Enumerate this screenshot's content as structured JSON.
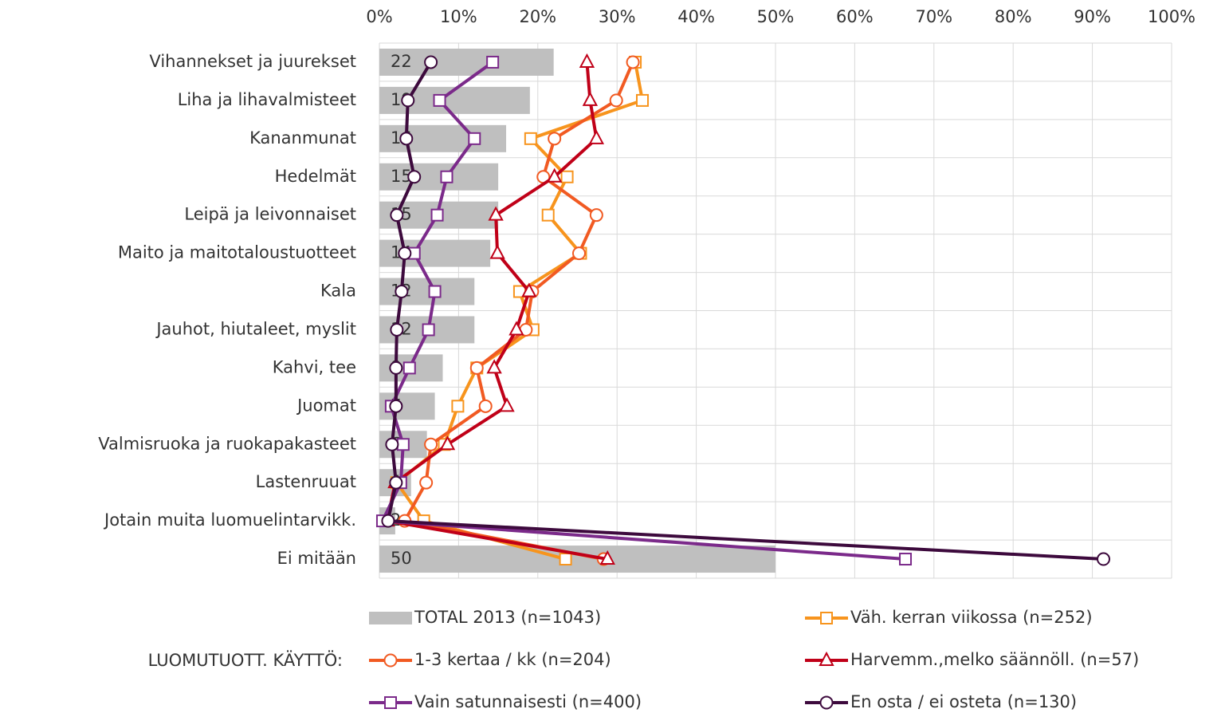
{
  "chart_data": {
    "type": "bar",
    "orientation": "horizontal",
    "categories": [
      "Vihannekset ja juurekset",
      "Liha ja lihavalmisteet",
      "Kananmunat",
      "Hedelmät",
      "Leipä ja leivonnaiset",
      "Maito ja maitotaloustuotteet",
      "Kala",
      "Jauhot, hiutaleet, myslit",
      "Kahvi, tee",
      "Juomat",
      "Valmisruoka ja ruokapakasteet",
      "Lastenruuat",
      "Jotain muita luomuelintarvikk.",
      "Ei mitään"
    ],
    "xlim": [
      0,
      100
    ],
    "xticks": [
      {
        "value": 0,
        "label": "0%"
      },
      {
        "value": 10,
        "label": "10%"
      },
      {
        "value": 20,
        "label": "20%"
      },
      {
        "value": 30,
        "label": "30%"
      },
      {
        "value": 40,
        "label": "40%"
      },
      {
        "value": 50,
        "label": "50%"
      },
      {
        "value": 60,
        "label": "60%"
      },
      {
        "value": 70,
        "label": "70%"
      },
      {
        "value": 80,
        "label": "80%"
      },
      {
        "value": 90,
        "label": "90%"
      },
      {
        "value": 100,
        "label": "100%"
      }
    ],
    "grid": true,
    "legend_title": "LUOMUTUOTT. KÄYTTÖ:",
    "series": [
      {
        "name": "TOTAL 2013 (n=1043)",
        "type": "bar",
        "color": "#bfbfbf",
        "values": [
          22,
          19,
          16,
          15,
          15,
          14,
          12,
          12,
          8,
          7,
          6,
          4,
          2,
          50
        ]
      },
      {
        "name": "Väh. kerran viikossa (n=252)",
        "type": "line",
        "marker": "square",
        "color": "#f7941d",
        "values": [
          32.3,
          33.2,
          19.1,
          23.7,
          21.3,
          25.4,
          17.7,
          19.4,
          12.3,
          9.9,
          8.2,
          2.2,
          5.6,
          23.5
        ]
      },
      {
        "name": "1-3 kertaa / kk (n=204)",
        "type": "line",
        "marker": "circle",
        "color": "#f15a22",
        "values": [
          32.0,
          29.9,
          22.1,
          20.7,
          27.4,
          25.2,
          19.3,
          18.5,
          12.3,
          13.4,
          6.5,
          5.9,
          3.2,
          28.3
        ]
      },
      {
        "name": "Harvemm.,melko säännöll. (n=57)",
        "type": "line",
        "marker": "triangle",
        "color": "#c00018",
        "values": [
          26.2,
          26.6,
          27.4,
          22.1,
          14.7,
          14.9,
          18.9,
          17.3,
          14.5,
          16.1,
          8.6,
          2.0,
          1.0,
          28.8
        ]
      },
      {
        "name": "Vain satunnaisesti (n=400)",
        "type": "line",
        "marker": "square",
        "color": "#7b2a8a",
        "values": [
          14.3,
          7.6,
          12.0,
          8.5,
          7.3,
          4.4,
          7.0,
          6.2,
          3.8,
          1.5,
          3.0,
          2.7,
          0.4,
          66.4
        ]
      },
      {
        "name": "En osta / ei osteta (n=130)",
        "type": "line",
        "marker": "circle",
        "color": "#3d0a3d",
        "values": [
          6.5,
          3.6,
          3.4,
          4.4,
          2.2,
          3.2,
          2.8,
          2.2,
          2.1,
          2.1,
          1.6,
          2.1,
          1.1,
          91.4
        ]
      }
    ]
  }
}
